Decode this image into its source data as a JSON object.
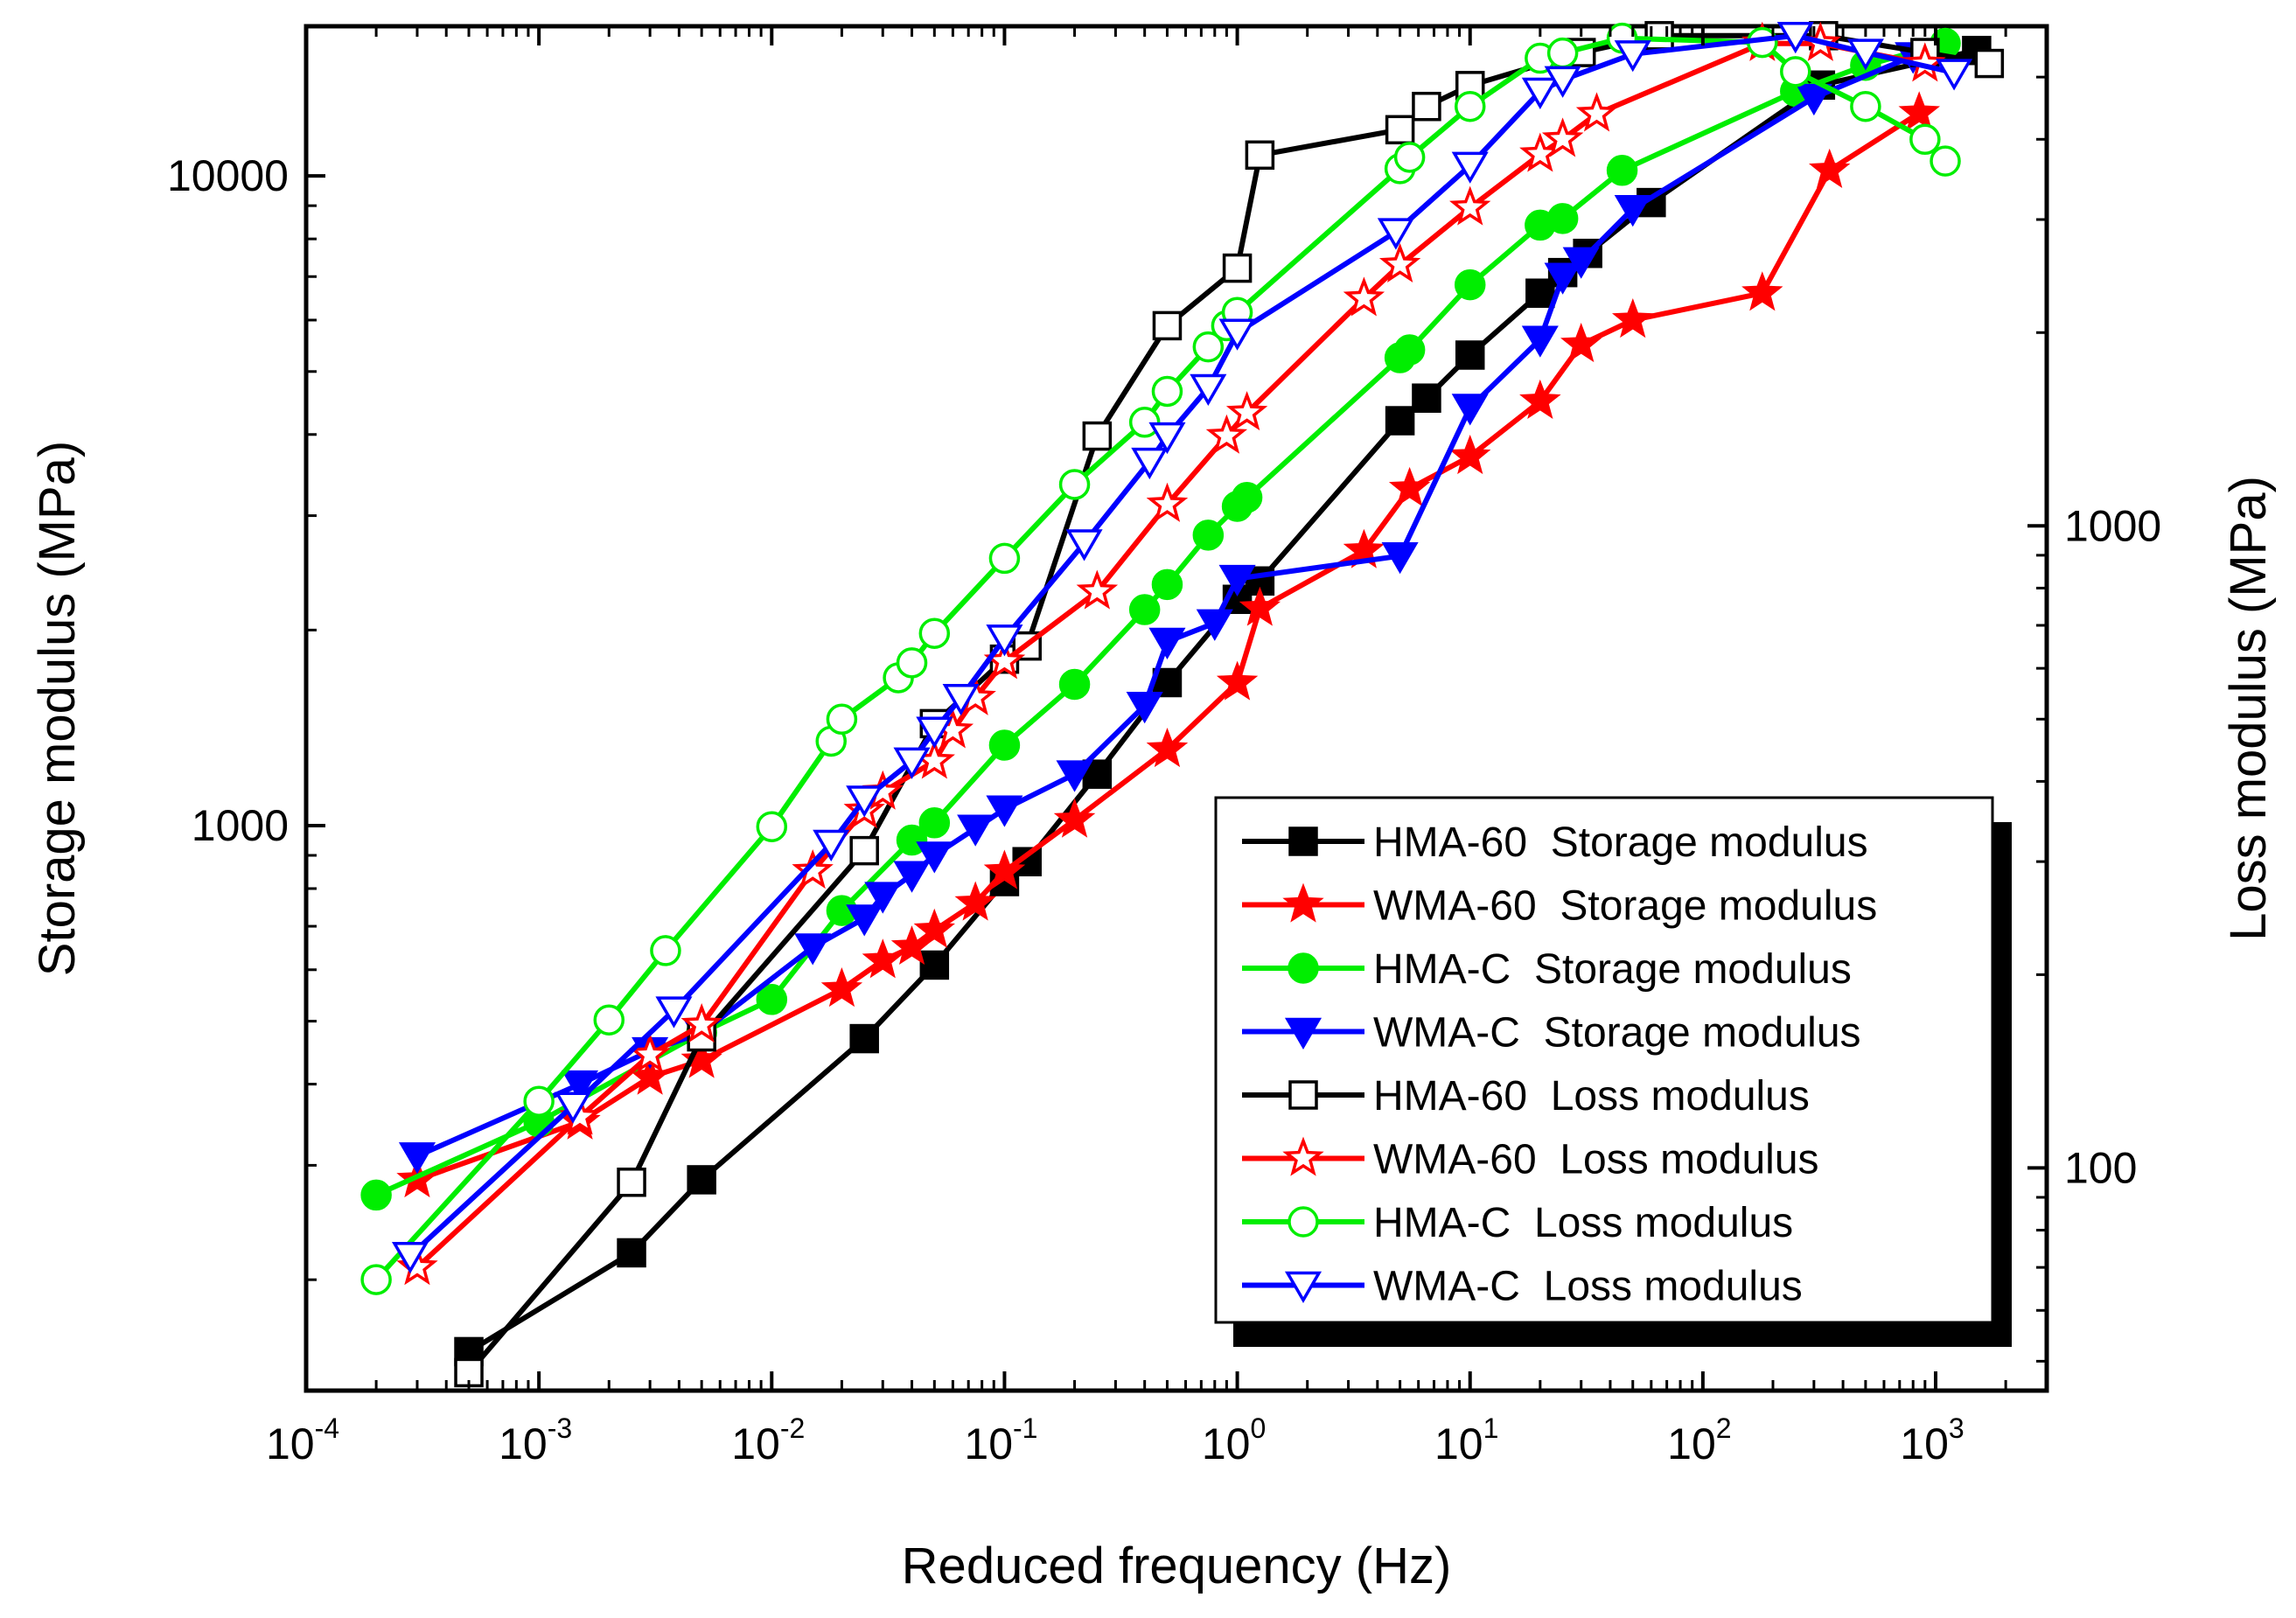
{
  "chart_data": {
    "type": "line",
    "title": "",
    "xlabel": "Reduced frequency (Hz)",
    "ylabel_left": "Storage modulus (MPa)",
    "ylabel_right": "Loss modulus (MPa)",
    "x_scale": "log",
    "y_scale": "log",
    "xlim": [
      0.0001,
      3000
    ],
    "ylim_left": [
      135,
      17000
    ],
    "ylim_right": [
      45,
      6000
    ],
    "x_ticks": [
      {
        "base": "10",
        "exp": "-4",
        "value": 0.0001
      },
      {
        "base": "10",
        "exp": "-3",
        "value": 0.001
      },
      {
        "base": "10",
        "exp": "-2",
        "value": 0.01
      },
      {
        "base": "10",
        "exp": "-1",
        "value": 0.1
      },
      {
        "base": "10",
        "exp": "0",
        "value": 1
      },
      {
        "base": "10",
        "exp": "1",
        "value": 10
      },
      {
        "base": "10",
        "exp": "2",
        "value": 100
      },
      {
        "base": "10",
        "exp": "3",
        "value": 1000
      }
    ],
    "y_left_ticks": [
      {
        "label": "1000",
        "value": 1000
      },
      {
        "label": "10000",
        "value": 10000
      }
    ],
    "y_right_ticks": [
      {
        "label": "100",
        "value": 100
      },
      {
        "label": "1000",
        "value": 1000
      }
    ],
    "legend_position": "lower-right",
    "series": [
      {
        "name": "HMA-60  Storage modulus",
        "axis": "left",
        "color": "#000000",
        "marker": "square",
        "filled": true,
        "x": [
          0.0005,
          0.0025,
          0.005,
          0.025,
          0.05,
          0.1,
          0.125,
          0.25,
          0.5,
          1.0,
          1.25,
          5.0,
          6.5,
          10,
          20,
          25,
          32,
          60,
          320,
          1500
        ],
        "y": [
          155,
          220,
          285,
          470,
          610,
          820,
          880,
          1200,
          1660,
          2230,
          2380,
          4200,
          4550,
          5300,
          6600,
          7100,
          7600,
          9100,
          13800,
          15600
        ]
      },
      {
        "name": "WMA-60  Storage modulus",
        "axis": "left",
        "color": "#ff0000",
        "marker": "star",
        "filled": true,
        "x": [
          0.0003,
          0.0015,
          0.003,
          0.005,
          0.02,
          0.03,
          0.04,
          0.05,
          0.075,
          0.1,
          0.2,
          0.5,
          1.0,
          1.25,
          3.5,
          5.5,
          10,
          20,
          30,
          50,
          180,
          350,
          850
        ],
        "y": [
          285,
          350,
          410,
          435,
          560,
          620,
          650,
          690,
          760,
          850,
          1020,
          1310,
          1660,
          2160,
          2650,
          3300,
          3700,
          4500,
          5500,
          6000,
          6600,
          10200,
          12500
        ]
      },
      {
        "name": "HMA-C  Storage modulus",
        "axis": "left",
        "color": "#00ee00",
        "marker": "circle",
        "filled": true,
        "x": [
          0.0002,
          0.001,
          0.005,
          0.01,
          0.02,
          0.04,
          0.05,
          0.1,
          0.2,
          0.4,
          0.5,
          0.75,
          1.0,
          1.1,
          5,
          5.5,
          10,
          20,
          25,
          45,
          250,
          500,
          1100
        ],
        "y": [
          270,
          350,
          480,
          540,
          740,
          950,
          1010,
          1330,
          1650,
          2150,
          2350,
          2800,
          3100,
          3200,
          5250,
          5400,
          6800,
          8400,
          8600,
          10200,
          13500,
          14800,
          16000
        ]
      },
      {
        "name": "WMA-C  Storage modulus",
        "axis": "left",
        "color": "#0000ff",
        "marker": "triangle-down",
        "filled": true,
        "x": [
          0.0003,
          0.0015,
          0.003,
          0.005,
          0.015,
          0.025,
          0.03,
          0.04,
          0.05,
          0.075,
          0.1,
          0.2,
          0.4,
          0.5,
          0.8,
          1.0,
          5.0,
          10,
          20,
          25,
          30,
          50,
          300,
          800
        ],
        "y": [
          310,
          400,
          450,
          480,
          650,
          720,
          780,
          840,
          900,
          990,
          1060,
          1200,
          1530,
          1920,
          2050,
          2400,
          2600,
          4400,
          5600,
          7000,
          7400,
          8900,
          13200,
          15300
        ]
      },
      {
        "name": "HMA-60  Loss modulus",
        "axis": "right",
        "color": "#000000",
        "marker": "square",
        "filled": false,
        "x": [
          0.0005,
          0.0025,
          0.005,
          0.025,
          0.05,
          0.1,
          0.125,
          0.25,
          0.5,
          1.0,
          1.25,
          5,
          6.5,
          10,
          30,
          65,
          330,
          900,
          1700
        ],
        "y": [
          48,
          95,
          160,
          312,
          492,
          620,
          650,
          1380,
          2050,
          2520,
          3780,
          4140,
          4500,
          4850,
          5460,
          5800,
          5800,
          5460,
          5250
        ]
      },
      {
        "name": "WMA-60  Loss modulus",
        "axis": "right",
        "color": "#ff0000",
        "marker": "star",
        "filled": false,
        "x": [
          0.0003,
          0.0015,
          0.003,
          0.005,
          0.015,
          0.025,
          0.03,
          0.05,
          0.06,
          0.075,
          0.1,
          0.25,
          0.5,
          0.9,
          1.1,
          3.5,
          5,
          10,
          20,
          25,
          35,
          180,
          320,
          900
        ],
        "y": [
          70,
          120,
          150,
          167,
          290,
          360,
          385,
          430,
          480,
          540,
          615,
          790,
          1080,
          1380,
          1500,
          2260,
          2550,
          3130,
          3790,
          4000,
          4380,
          5640,
          5640,
          5240
        ]
      },
      {
        "name": "HMA-C  Loss modulus",
        "axis": "right",
        "color": "#00ee00",
        "marker": "circle",
        "filled": false,
        "x": [
          0.0002,
          0.001,
          0.002,
          0.0035,
          0.01,
          0.018,
          0.02,
          0.035,
          0.04,
          0.05,
          0.1,
          0.2,
          0.4,
          0.5,
          0.75,
          0.9,
          1.0,
          5,
          5.5,
          10,
          20,
          25,
          45,
          180,
          250,
          500,
          900,
          1100
        ],
        "y": [
          67,
          127,
          170,
          218,
          340,
          462,
          500,
          580,
          612,
          680,
          890,
          1160,
          1450,
          1620,
          1900,
          2050,
          2150,
          3600,
          3750,
          4500,
          5350,
          5450,
          5750,
          5660,
          5100,
          4500,
          4000,
          3700
        ]
      },
      {
        "name": "WMA-C  Loss modulus",
        "axis": "right",
        "color": "#0000ff",
        "marker": "triangle-down",
        "filled": false,
        "x": [
          0.00028,
          0.0014,
          0.0038,
          0.018,
          0.025,
          0.04,
          0.05,
          0.065,
          0.1,
          0.22,
          0.42,
          0.5,
          0.75,
          1.0,
          4.8,
          10,
          20,
          25,
          50,
          250,
          500,
          1200
        ],
        "y": [
          73,
          125,
          176,
          320,
          375,
          430,
          480,
          540,
          668,
          940,
          1260,
          1380,
          1640,
          2000,
          2870,
          3640,
          4750,
          4950,
          5430,
          5800,
          5460,
          5080
        ]
      }
    ]
  }
}
